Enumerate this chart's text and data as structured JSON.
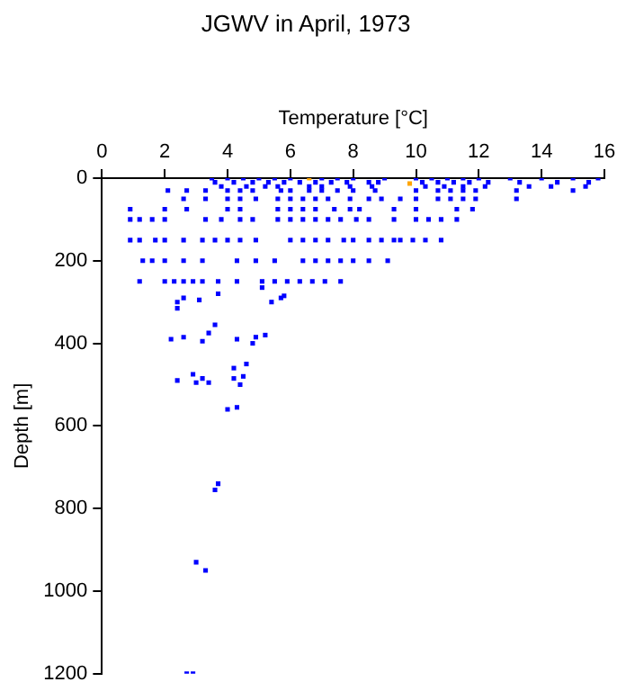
{
  "chart_data": {
    "type": "scatter",
    "title": "JGWV in April, 1973",
    "xlabel": "Temperature [°C]",
    "ylabel": "Depth [m]",
    "xlim": [
      0,
      16
    ],
    "xticks": [
      0,
      2,
      4,
      6,
      8,
      10,
      12,
      14,
      16
    ],
    "ylim": [
      1200,
      0
    ],
    "yticks": [
      0,
      200,
      400,
      600,
      800,
      1000,
      1200
    ],
    "grid": false,
    "legend": false,
    "marker": "square",
    "series": [
      {
        "color": "#0000ff",
        "x": [
          3.5,
          4.0,
          4.5,
          5.0,
          5.5,
          6.0,
          7.0,
          7.5,
          8.0,
          9.0,
          10.0,
          10.5,
          11.0,
          11.5,
          12.0,
          13.0,
          14.0,
          15.0,
          15.8,
          3.6,
          4.2,
          4.8,
          5.3,
          5.8,
          6.3,
          6.8,
          7.3,
          7.8,
          8.5,
          8.8,
          10.2,
          10.7,
          11.2,
          11.7,
          12.3,
          13.3,
          14.5,
          15.5,
          3.8,
          4.6,
          5.2,
          5.6,
          6.6,
          7.0,
          7.9,
          8.6,
          10.3,
          10.9,
          11.5,
          12.2,
          13.6,
          14.3,
          15.4,
          2.1,
          2.7,
          3.3,
          4.0,
          4.4,
          4.8,
          5.7,
          6.0,
          6.6,
          7.0,
          7.5,
          8.0,
          8.7,
          10.0,
          10.7,
          11.1,
          11.5,
          11.9,
          13.2,
          15.0,
          2.6,
          3.3,
          4.0,
          4.4,
          4.9,
          5.6,
          6.0,
          6.4,
          6.8,
          7.2,
          7.9,
          8.5,
          8.9,
          9.5,
          10.0,
          10.7,
          11.1,
          11.5,
          11.9,
          13.2,
          0.9,
          2.0,
          2.7,
          4.0,
          4.4,
          5.6,
          6.0,
          6.4,
          6.8,
          7.4,
          7.9,
          8.2,
          9.3,
          10.0,
          11.3,
          11.8,
          0.9,
          1.2,
          1.6,
          2.0,
          3.3,
          3.8,
          4.4,
          4.8,
          5.6,
          6.0,
          6.4,
          6.8,
          7.2,
          7.6,
          8.1,
          8.5,
          9.3,
          10.0,
          10.4,
          10.8,
          11.3,
          0.9,
          1.2,
          1.7,
          2.0,
          2.6,
          3.2,
          3.6,
          4.0,
          4.4,
          4.9,
          6.0,
          6.4,
          6.8,
          7.2,
          7.7,
          8.0,
          8.5,
          8.9,
          9.3,
          9.5,
          9.9,
          10.3,
          10.8,
          1.3,
          1.6,
          2.0,
          2.6,
          3.2,
          4.3,
          4.9,
          5.5,
          6.4,
          6.8,
          7.2,
          7.6,
          8.0,
          8.5,
          9.1,
          1.2,
          2.0,
          2.3,
          2.6,
          2.9,
          3.2,
          3.7,
          4.3,
          5.1,
          5.5,
          5.9,
          6.3,
          6.7,
          7.1,
          7.6,
          2.6,
          2.4,
          2.4,
          3.1,
          3.7,
          5.4,
          5.7,
          5.8,
          5.1,
          2.2,
          2.6,
          3.2,
          3.4,
          3.6,
          4.3,
          4.9,
          5.2,
          4.8,
          2.4,
          2.9,
          3.0,
          3.2,
          3.4,
          4.2,
          4.2,
          4.4,
          4.5,
          4.6,
          4.0,
          4.3,
          3.7,
          3.6,
          3.0,
          3.3,
          2.7,
          2.9
        ],
        "values": [
          0,
          0,
          0,
          0,
          0,
          0,
          0,
          0,
          0,
          0,
          0,
          0,
          0,
          0,
          0,
          0,
          0,
          0,
          0,
          10,
          10,
          10,
          10,
          10,
          10,
          10,
          10,
          10,
          10,
          10,
          10,
          10,
          10,
          10,
          10,
          10,
          10,
          10,
          20,
          20,
          20,
          20,
          20,
          20,
          20,
          20,
          20,
          20,
          20,
          20,
          20,
          20,
          20,
          30,
          30,
          30,
          30,
          30,
          30,
          30,
          30,
          30,
          30,
          30,
          30,
          30,
          30,
          30,
          30,
          30,
          30,
          30,
          30,
          50,
          50,
          50,
          50,
          50,
          50,
          50,
          50,
          50,
          50,
          50,
          50,
          50,
          50,
          50,
          50,
          50,
          50,
          50,
          50,
          75,
          75,
          75,
          75,
          75,
          75,
          75,
          75,
          75,
          75,
          75,
          75,
          75,
          75,
          75,
          75,
          100,
          100,
          100,
          100,
          100,
          100,
          100,
          100,
          100,
          100,
          100,
          100,
          100,
          100,
          100,
          100,
          100,
          100,
          100,
          100,
          100,
          150,
          150,
          150,
          150,
          150,
          150,
          150,
          150,
          150,
          150,
          150,
          150,
          150,
          150,
          150,
          150,
          150,
          150,
          150,
          150,
          150,
          150,
          150,
          200,
          200,
          200,
          200,
          200,
          200,
          200,
          200,
          200,
          200,
          200,
          200,
          200,
          200,
          200,
          250,
          250,
          250,
          250,
          250,
          250,
          250,
          250,
          250,
          250,
          250,
          250,
          250,
          250,
          250,
          290,
          300,
          315,
          295,
          280,
          300,
          290,
          285,
          265,
          390,
          385,
          395,
          375,
          355,
          390,
          385,
          380,
          400,
          490,
          475,
          495,
          485,
          495,
          460,
          485,
          500,
          480,
          450,
          560,
          555,
          740,
          755,
          930,
          950,
          1200,
          1200
        ]
      },
      {
        "color": "#ffa500",
        "x": [
          6.6,
          9.8
        ],
        "values": [
          0,
          13
        ]
      }
    ]
  }
}
